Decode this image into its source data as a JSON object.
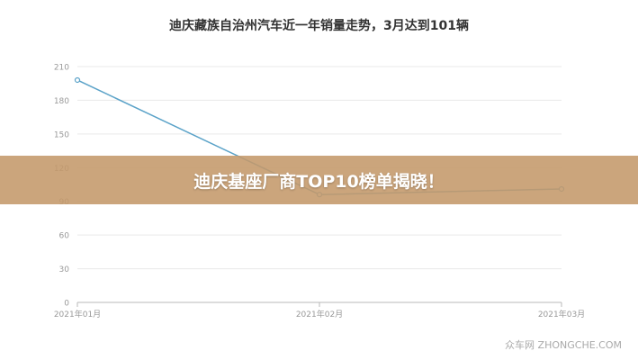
{
  "chart_data": {
    "type": "line",
    "title": "迪庆藏族自治州汽车近一年销量走势，3月达到101辆",
    "xlabel": "",
    "ylabel": "",
    "categories": [
      "2021年01月",
      "2021年02月",
      "2021年03月"
    ],
    "series": [
      {
        "values": [
          198,
          96,
          101
        ],
        "color": "#5aa2c8"
      }
    ],
    "ylim": [
      0,
      210
    ],
    "yticks": [
      0,
      30,
      60,
      90,
      120,
      150,
      180,
      210
    ],
    "grid": true,
    "colors": {
      "line": "#5aa2c8",
      "grid": "#e9e9e9",
      "axis": "#b8b8b8",
      "tick_text": "#999999"
    }
  },
  "banner": {
    "text": "迪庆基座厂商TOP10榜单揭晓！"
  },
  "watermark": {
    "text": "众车网 ZHONGCHE.COM"
  }
}
